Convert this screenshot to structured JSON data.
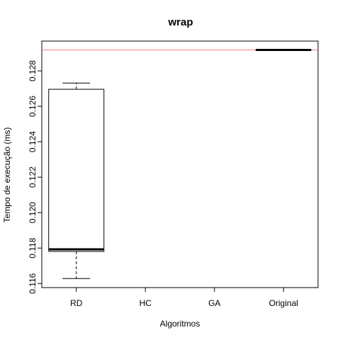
{
  "chart_data": {
    "type": "boxplot",
    "title": "wrap",
    "xlabel": "Algoritmos",
    "ylabel": "Tempo de execução (ms)",
    "categories": [
      "RD",
      "HC",
      "GA",
      "Original"
    ],
    "yticks": [
      "0.116",
      "0.118",
      "0.120",
      "0.122",
      "0.124",
      "0.126",
      "0.128"
    ],
    "ylim": [
      0.11577,
      0.12968
    ],
    "boxes": [
      {
        "category": "RD",
        "whisker_low": 0.11628,
        "q1": 0.11781,
        "median": 0.11793,
        "q3": 0.12696,
        "whisker_high": 0.12731
      },
      {
        "category": "Original",
        "whisker_low": 0.12918,
        "q1": 0.12918,
        "median": 0.12918,
        "q3": 0.12918,
        "whisker_high": 0.12918
      }
    ],
    "reference_line": {
      "value": 0.12918,
      "color": "#f08080"
    },
    "grid": false,
    "legend": "none"
  }
}
